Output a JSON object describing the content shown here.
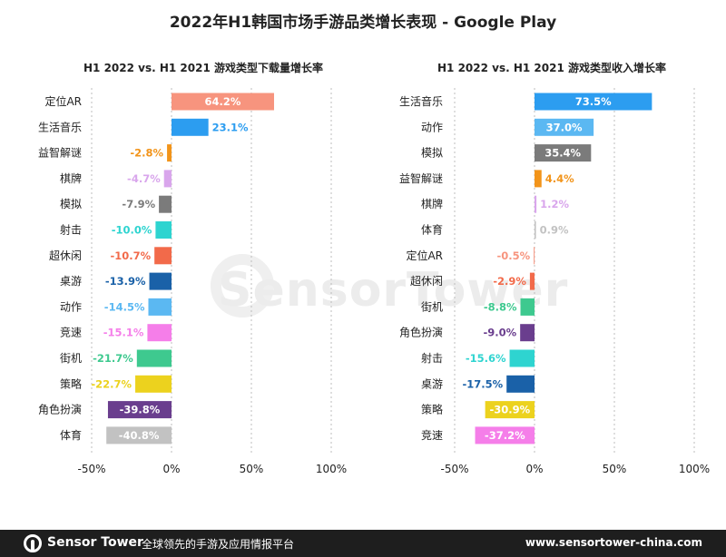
{
  "title": "2022年H1韩国市场手游品类增长表现 - Google Play",
  "watermark": "SensorTower",
  "footer": {
    "brand": "Sensor Tower",
    "slogan": "全球领先的手游及应用情报平台",
    "url": "www.sensortower-china.com"
  },
  "chart_data": [
    {
      "type": "bar",
      "orientation": "horizontal",
      "title": "H1 2022 vs. H1 2021 游戏类型下载量增长率",
      "categories": [
        "定位AR",
        "生活音乐",
        "益智解谜",
        "棋牌",
        "模拟",
        "射击",
        "超休闲",
        "桌游",
        "动作",
        "竞速",
        "街机",
        "策略",
        "角色扮演",
        "体育"
      ],
      "values": [
        64.2,
        23.1,
        -2.8,
        -4.7,
        -7.9,
        -10.0,
        -10.7,
        -13.9,
        -14.5,
        -15.1,
        -21.7,
        -22.7,
        -39.8,
        -40.8
      ],
      "labels": [
        "64.2%",
        "23.1%",
        "-2.8%",
        "-4.7%",
        "-7.9%",
        "-10.0%",
        "-10.7%",
        "-13.9%",
        "-14.5%",
        "-15.1%",
        "-21.7%",
        "-22.7%",
        "-39.8%",
        "-40.8%"
      ],
      "colors": [
        "#f7947e",
        "#2c9df0",
        "#f2941a",
        "#d9a6ec",
        "#7b7b7b",
        "#2ed4d0",
        "#f26a4a",
        "#1a61a8",
        "#5bb8f2",
        "#f57ee9",
        "#3ec98f",
        "#ecd21e",
        "#6a3e8e",
        "#c2c2c2"
      ],
      "xlim": [
        -50,
        100
      ],
      "xticks": [
        "-50%",
        "0%",
        "50%",
        "100%"
      ],
      "xtick_values": [
        -50,
        0,
        50,
        100
      ]
    },
    {
      "type": "bar",
      "orientation": "horizontal",
      "title": "H1 2022 vs. H1 2021 游戏类型收入增长率",
      "categories": [
        "生活音乐",
        "动作",
        "模拟",
        "益智解谜",
        "棋牌",
        "体育",
        "定位AR",
        "超休闲",
        "街机",
        "角色扮演",
        "射击",
        "桌游",
        "策略",
        "竞速"
      ],
      "values": [
        73.5,
        37.0,
        35.4,
        4.4,
        1.2,
        0.9,
        -0.5,
        -2.9,
        -8.8,
        -9.0,
        -15.6,
        -17.5,
        -30.9,
        -37.2
      ],
      "labels": [
        "73.5%",
        "37.0%",
        "35.4%",
        "4.4%",
        "1.2%",
        "0.9%",
        "-0.5%",
        "-2.9%",
        "-8.8%",
        "-9.0%",
        "-15.6%",
        "-17.5%",
        "-30.9%",
        "-37.2%"
      ],
      "colors": [
        "#2c9df0",
        "#5bb8f2",
        "#7b7b7b",
        "#f2941a",
        "#d9a6ec",
        "#c2c2c2",
        "#f7947e",
        "#f26a4a",
        "#3ec98f",
        "#6a3e8e",
        "#2ed4d0",
        "#1a61a8",
        "#ecd21e",
        "#f57ee9"
      ],
      "xlim": [
        -50,
        100
      ],
      "xticks": [
        "-50%",
        "0%",
        "50%",
        "100%"
      ],
      "xtick_values": [
        -50,
        0,
        50,
        100
      ]
    }
  ]
}
